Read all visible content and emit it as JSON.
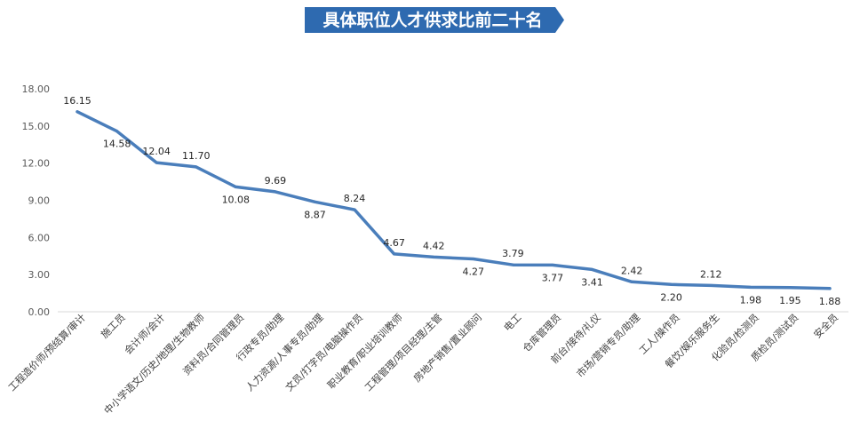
{
  "chart_data": {
    "type": "line",
    "title": "具体职位人才供求比前二十名",
    "xlabel": "",
    "ylabel": "",
    "ylim": [
      0,
      18
    ],
    "yticks": [
      "0.00",
      "3.00",
      "6.00",
      "9.00",
      "12.00",
      "15.00",
      "18.00"
    ],
    "grid": false,
    "legend": "none",
    "colors": {
      "line": "#4a7ebb",
      "title_bg": "#2e6ab0"
    },
    "categories": [
      "工程造价师/预结算/审计",
      "施工员",
      "会计师/会计",
      "中小学语文/历史/地理/生物教师",
      "资料员/合同管理员",
      "行政专员/助理",
      "人力资源/人事专员/助理",
      "文员/打字员/电脑操作员",
      "职业教育/职业培训教师",
      "工程管理/项目经理/主管",
      "房地产销售/置业顾问",
      "电工",
      "仓库管理员",
      "前台/接待/礼仪",
      "市场/营销专员/助理",
      "工人/操作员",
      "餐饮/娱乐服务生",
      "化验员/检测员",
      "质检员/测试员",
      "安全员"
    ],
    "values": [
      16.15,
      14.58,
      12.04,
      11.7,
      10.08,
      9.69,
      8.87,
      8.24,
      4.67,
      4.42,
      4.27,
      3.79,
      3.77,
      3.41,
      2.42,
      2.2,
      2.12,
      1.98,
      1.95,
      1.88
    ],
    "value_labels": [
      "16.15",
      "14.58",
      "12.04",
      "11.70",
      "10.08",
      "9.69",
      "8.87",
      "8.24",
      "4.67",
      "4.42",
      "4.27",
      "3.79",
      "3.77",
      "3.41",
      "2.42",
      "2.20",
      "2.12",
      "1.98",
      "1.95",
      "1.88"
    ]
  }
}
